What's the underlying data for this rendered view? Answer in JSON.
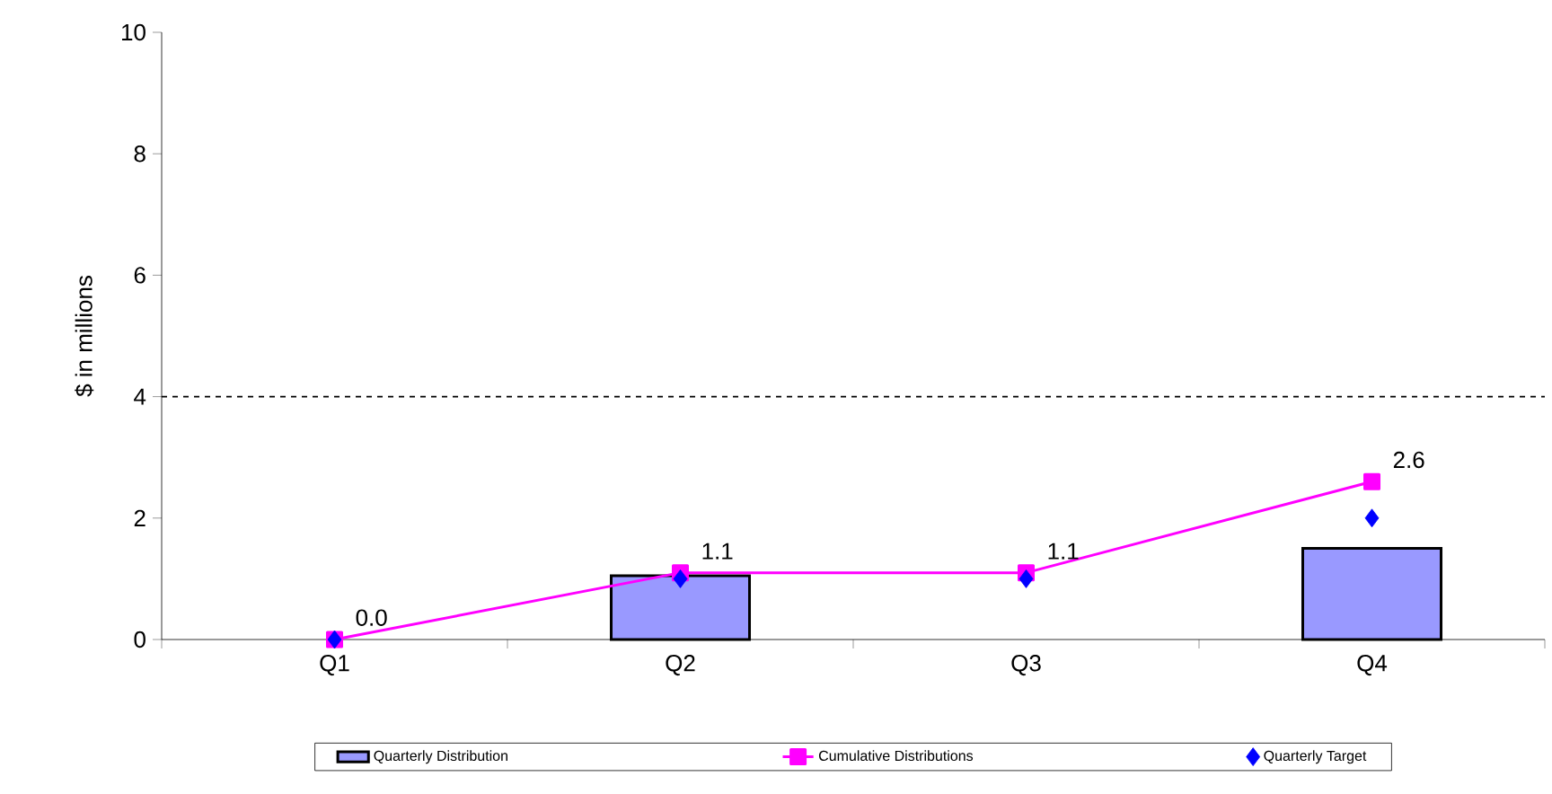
{
  "chart_data": {
    "type": "bar",
    "ylabel": "$ in millions",
    "categories": [
      "Q1",
      "Q2",
      "Q3",
      "Q4"
    ],
    "series": [
      {
        "name": "Quarterly Distribution",
        "color": "#9999ff",
        "values": [
          null,
          1.05,
          null,
          1.5
        ]
      },
      {
        "name": "Cumulative Distributions",
        "type": "line",
        "color": "#ff00ff",
        "marker": "square",
        "values": [
          0.0,
          1.1,
          1.1,
          2.6
        ],
        "value_labels": [
          "0.0",
          "1.1",
          "1.1",
          "2.6"
        ]
      },
      {
        "name": "Quarterly Target",
        "type": "scatter",
        "color": "#0000ff",
        "marker": "diamond",
        "values": [
          0,
          1,
          1,
          2
        ]
      }
    ],
    "ylim": [
      0,
      10
    ],
    "yticks": [
      0,
      2,
      4,
      6,
      8,
      10
    ],
    "ref_lines": [
      {
        "axis": "y",
        "value": 4,
        "color": "#000000",
        "line_style": "dashed"
      }
    ],
    "legend": "bottom"
  }
}
